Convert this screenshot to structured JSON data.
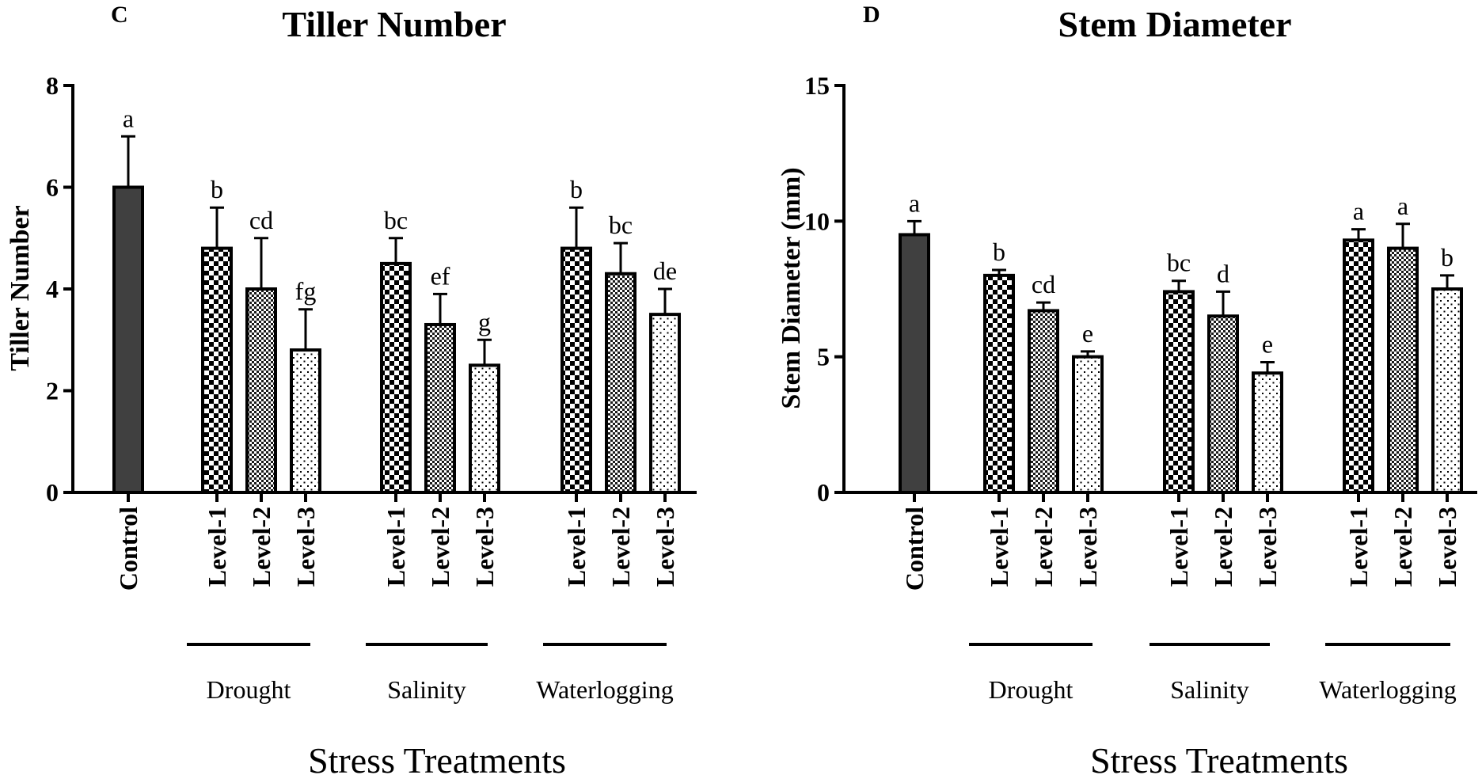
{
  "chart_data": [
    {
      "type": "bar",
      "panel": "C",
      "title": "Tiller Number",
      "ylabel": "Tiller Number",
      "xlabel": "Stress Treatments",
      "ylim": [
        0,
        8
      ],
      "yticks": [
        0,
        2,
        4,
        6,
        8
      ],
      "groups": [
        "Drought",
        "Salinity",
        "Waterlogging"
      ],
      "bars": [
        {
          "category": "Control",
          "group": "",
          "value": 6.0,
          "error": 1.0,
          "sig": "a",
          "pattern": "solid"
        },
        {
          "category": "Level-1",
          "group": "Drought",
          "value": 4.8,
          "error": 0.8,
          "sig": "b",
          "pattern": "checker"
        },
        {
          "category": "Level-2",
          "group": "Drought",
          "value": 4.0,
          "error": 1.0,
          "sig": "cd",
          "pattern": "fine"
        },
        {
          "category": "Level-3",
          "group": "Drought",
          "value": 2.8,
          "error": 0.8,
          "sig": "fg",
          "pattern": "dots"
        },
        {
          "category": "Level-1",
          "group": "Salinity",
          "value": 4.5,
          "error": 0.5,
          "sig": "bc",
          "pattern": "checker"
        },
        {
          "category": "Level-2",
          "group": "Salinity",
          "value": 3.3,
          "error": 0.6,
          "sig": "ef",
          "pattern": "fine"
        },
        {
          "category": "Level-3",
          "group": "Salinity",
          "value": 2.5,
          "error": 0.5,
          "sig": "g",
          "pattern": "dots"
        },
        {
          "category": "Level-1",
          "group": "Waterlogging",
          "value": 4.8,
          "error": 0.8,
          "sig": "b",
          "pattern": "checker"
        },
        {
          "category": "Level-2",
          "group": "Waterlogging",
          "value": 4.3,
          "error": 0.6,
          "sig": "bc",
          "pattern": "fine"
        },
        {
          "category": "Level-3",
          "group": "Waterlogging",
          "value": 3.5,
          "error": 0.5,
          "sig": "de",
          "pattern": "dots"
        }
      ]
    },
    {
      "type": "bar",
      "panel": "D",
      "title": "Stem Diameter",
      "ylabel": "Stem  Diameter (mm)",
      "xlabel": "Stress Treatments",
      "ylim": [
        0,
        15
      ],
      "yticks": [
        0,
        5,
        10,
        15
      ],
      "groups": [
        "Drought",
        "Salinity",
        "Waterlogging"
      ],
      "bars": [
        {
          "category": "Control",
          "group": "",
          "value": 9.5,
          "error": 0.5,
          "sig": "a",
          "pattern": "solid"
        },
        {
          "category": "Level-1",
          "group": "Drought",
          "value": 8.0,
          "error": 0.2,
          "sig": "b",
          "pattern": "checker"
        },
        {
          "category": "Level-2",
          "group": "Drought",
          "value": 6.7,
          "error": 0.3,
          "sig": "cd",
          "pattern": "fine"
        },
        {
          "category": "Level-3",
          "group": "Drought",
          "value": 5.0,
          "error": 0.2,
          "sig": "e",
          "pattern": "dots"
        },
        {
          "category": "Level-1",
          "group": "Salinity",
          "value": 7.4,
          "error": 0.4,
          "sig": "bc",
          "pattern": "checker"
        },
        {
          "category": "Level-2",
          "group": "Salinity",
          "value": 6.5,
          "error": 0.9,
          "sig": "d",
          "pattern": "fine"
        },
        {
          "category": "Level-3",
          "group": "Salinity",
          "value": 4.4,
          "error": 0.4,
          "sig": "e",
          "pattern": "dots"
        },
        {
          "category": "Level-1",
          "group": "Waterlogging",
          "value": 9.3,
          "error": 0.4,
          "sig": "a",
          "pattern": "checker"
        },
        {
          "category": "Level-2",
          "group": "Waterlogging",
          "value": 9.0,
          "error": 0.9,
          "sig": "a",
          "pattern": "fine"
        },
        {
          "category": "Level-3",
          "group": "Waterlogging",
          "value": 7.5,
          "error": 0.5,
          "sig": "b",
          "pattern": "dots"
        }
      ]
    }
  ]
}
